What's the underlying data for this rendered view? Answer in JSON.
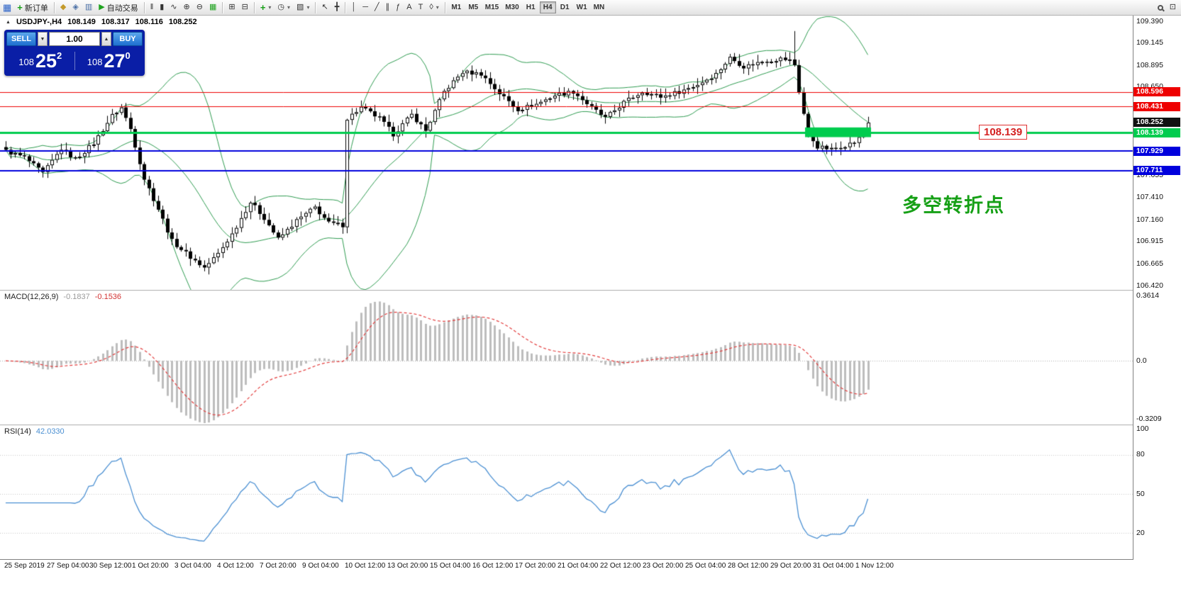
{
  "toolbar": {
    "app_glyph": "▦",
    "new_order": {
      "icon": "+",
      "label": "新订单"
    },
    "market_watch_glyph": "◆",
    "navigator_glyph": "◈",
    "terminal_glyph": "▥",
    "autotrading": {
      "icon": "▶",
      "label": "自动交易"
    },
    "bar_chart_glyph": "‖",
    "candle_glyph": "▮",
    "line_chart_glyph": "∿",
    "zoom_in_glyph": "⊕",
    "zoom_out_glyph": "⊖",
    "grid_glyph": "▦",
    "cascade_glyph": "⊞",
    "tile_glyph": "⊟",
    "indicators_glyph": "+",
    "periods_glyph": "◷",
    "templates_glyph": "▧",
    "cursor_glyph": "↖",
    "crosshair_glyph": "╋",
    "vline_glyph": "│",
    "hline_glyph": "─",
    "trendline_glyph": "╱",
    "channel_glyph": "∥",
    "fibo_glyph": "ƒ",
    "text_glyph": "A",
    "label_glyph": "T",
    "shapes_glyph": "◊",
    "caret_glyph": "▾",
    "panel_glyph": "⊡",
    "timeframes": [
      "M1",
      "M5",
      "M15",
      "M30",
      "H1",
      "H4",
      "D1",
      "W1",
      "MN"
    ],
    "active_timeframe": "H4"
  },
  "chart": {
    "collapse_icon": "▲",
    "symbol_period": "USDJPY-,H4",
    "open": "108.149",
    "high": "108.317",
    "low": "108.116",
    "close": "108.252"
  },
  "trade_panel": {
    "sell_label": "SELL",
    "buy_label": "BUY",
    "volume": "1.00",
    "down_glyph": "▼",
    "up_glyph": "▲",
    "bid": "108.252",
    "ask": "108.270",
    "bid_prefix": "108",
    "bid_big": "25",
    "bid_sup": "2",
    "ask_prefix": "108",
    "ask_big": "27",
    "ask_sup": "0"
  },
  "indicators": {
    "macd_name": "MACD(12,26,9)",
    "macd_value1": "-0.1837",
    "macd_value2": "-0.1536",
    "rsi_name": "RSI(14)",
    "rsi_value": "42.0330"
  },
  "annotations": {
    "turning_point_text": "多空转折点",
    "price_callout": "108.139"
  },
  "chart_data": {
    "type": "candlestick",
    "symbol": "USDJPY-",
    "timeframe": "H4",
    "ohlc_current": {
      "open": 108.149,
      "high": 108.317,
      "low": 108.116,
      "close": 108.252
    },
    "ylim": [
      106.42,
      109.39
    ],
    "price_axis_ticks": [
      109.39,
      109.145,
      108.895,
      108.65,
      107.655,
      107.41,
      107.16,
      106.915,
      106.665,
      106.42
    ],
    "num_bars": 188,
    "close_path_anchors": [
      [
        0,
        107.93
      ],
      [
        4,
        107.86
      ],
      [
        8,
        107.68
      ],
      [
        12,
        107.96
      ],
      [
        15,
        107.84
      ],
      [
        19,
        108.02
      ],
      [
        23,
        108.33
      ],
      [
        25,
        108.42
      ],
      [
        27,
        108.18
      ],
      [
        30,
        107.62
      ],
      [
        33,
        107.28
      ],
      [
        36,
        106.92
      ],
      [
        40,
        106.74
      ],
      [
        43,
        106.62
      ],
      [
        46,
        106.78
      ],
      [
        49,
        107.0
      ],
      [
        53,
        107.36
      ],
      [
        56,
        107.18
      ],
      [
        59,
        106.94
      ],
      [
        63,
        107.15
      ],
      [
        67,
        107.3
      ],
      [
        70,
        107.12
      ],
      [
        73,
        107.1
      ],
      [
        74,
        108.3
      ],
      [
        77,
        108.42
      ],
      [
        81,
        108.3
      ],
      [
        84,
        108.12
      ],
      [
        88,
        108.34
      ],
      [
        91,
        108.16
      ],
      [
        95,
        108.6
      ],
      [
        99,
        108.82
      ],
      [
        103,
        108.8
      ],
      [
        107,
        108.58
      ],
      [
        111,
        108.4
      ],
      [
        115,
        108.46
      ],
      [
        119,
        108.56
      ],
      [
        123,
        108.6
      ],
      [
        127,
        108.42
      ],
      [
        130,
        108.3
      ],
      [
        134,
        108.48
      ],
      [
        138,
        108.6
      ],
      [
        142,
        108.54
      ],
      [
        146,
        108.6
      ],
      [
        150,
        108.68
      ],
      [
        154,
        108.8
      ],
      [
        157,
        108.98
      ],
      [
        160,
        108.88
      ],
      [
        164,
        108.94
      ],
      [
        168,
        108.97
      ],
      [
        170,
        108.95
      ],
      [
        171,
        108.9
      ],
      [
        172,
        108.6
      ],
      [
        173,
        108.35
      ],
      [
        174,
        108.12
      ],
      [
        176,
        107.98
      ],
      [
        179,
        107.95
      ],
      [
        182,
        108.0
      ],
      [
        184,
        108.03
      ],
      [
        186,
        108.12
      ],
      [
        187,
        108.25
      ]
    ],
    "spike": {
      "bar": 171,
      "high": 109.28
    },
    "bollinger": {
      "period": 20,
      "deviation": 2,
      "color": "#2e9b50"
    },
    "horizontal_lines": [
      {
        "price": 108.596,
        "color": "#ee0000",
        "width": 1
      },
      {
        "price": 108.431,
        "color": "#ee0000",
        "width": 1
      },
      {
        "price": 108.139,
        "color": "#00cc4e",
        "width": 3
      },
      {
        "price": 107.929,
        "color": "#0000dd",
        "width": 2
      },
      {
        "price": 107.711,
        "color": "#0000dd",
        "width": 2
      }
    ],
    "current_price": 108.252,
    "highlight_box": {
      "bar_start": 174,
      "bar_end": 188,
      "price_top": 108.197,
      "price_bottom": 108.088,
      "color": "#00cc4e"
    },
    "macd": {
      "params": [
        12,
        26,
        9
      ],
      "current_values": [
        -0.1837,
        -0.1536
      ],
      "axis_ticks": [
        "0.3614",
        "0.0",
        "-0.3209"
      ],
      "histogram_color": "#bdbdbd",
      "signal_color": "#e23b3b"
    },
    "rsi": {
      "period": 14,
      "current_value": 42.033,
      "axis_ticks": [
        100,
        80,
        50,
        20
      ],
      "levels": [
        80,
        50,
        20
      ],
      "color": "#4a8fd2"
    },
    "time_axis": [
      "25 Sep 2019",
      "27 Sep 04:00",
      "30 Sep 12:00",
      "1 Oct 20:00",
      "3 Oct 04:00",
      "4 Oct 12:00",
      "7 Oct 20:00",
      "9 Oct 04:00",
      "10 Oct 12:00",
      "13 Oct 20:00",
      "15 Oct 04:00",
      "16 Oct 12:00",
      "17 Oct 20:00",
      "21 Oct 04:00",
      "22 Oct 12:00",
      "23 Oct 20:00",
      "25 Oct 04:00",
      "28 Oct 12:00",
      "29 Oct 20:00",
      "31 Oct 04:00",
      "1 Nov 12:00"
    ]
  }
}
